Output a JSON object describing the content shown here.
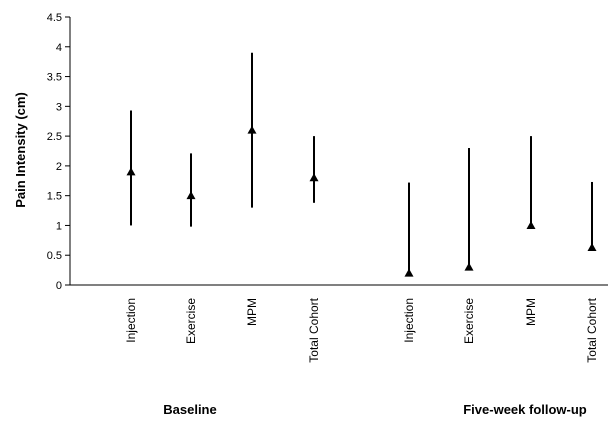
{
  "chart_data": {
    "type": "scatter",
    "ylabel": "Pain Intensity (cm)",
    "ylim": [
      0,
      4.5
    ],
    "yticks": [
      "0",
      "0.5",
      "1",
      "1.5",
      "2",
      "2.5",
      "3",
      "3.5",
      "4",
      "4.5"
    ],
    "grid": false,
    "legend": "none",
    "groups": [
      {
        "label": "Baseline",
        "categories": [
          {
            "name": "Injection",
            "median": 1.9,
            "low": 1.0,
            "high": 2.93
          },
          {
            "name": "Exercise",
            "median": 1.5,
            "low": 0.98,
            "high": 2.21
          },
          {
            "name": "MPM",
            "median": 2.6,
            "low": 1.3,
            "high": 3.9
          },
          {
            "name": "Total Cohort",
            "median": 1.8,
            "low": 1.38,
            "high": 2.5
          }
        ]
      },
      {
        "label": "Five-week follow-up",
        "categories": [
          {
            "name": "Injection",
            "median": 0.2,
            "low": 0.2,
            "high": 1.72
          },
          {
            "name": "Exercise",
            "median": 0.3,
            "low": 0.3,
            "high": 2.3
          },
          {
            "name": "MPM",
            "median": 1.0,
            "low": 1.0,
            "high": 2.5
          },
          {
            "name": "Total Cohort",
            "median": 0.63,
            "low": 0.63,
            "high": 1.73
          }
        ]
      }
    ],
    "marker": "triangle",
    "color": "#000000"
  }
}
